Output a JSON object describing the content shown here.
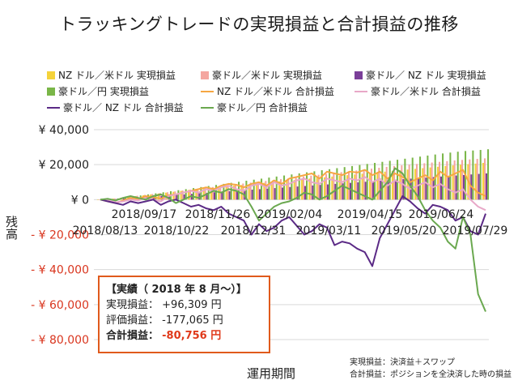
{
  "title": "トラッキングトレードの実現損益と合計損益の推移",
  "chart_data": {
    "type": "bar",
    "xlabel": "運用期間",
    "ylabel": "残高",
    "ylim": [
      -80000,
      40000
    ],
    "yticks": [
      {
        "value": 40000,
        "label": "¥ 40,000"
      },
      {
        "value": 20000,
        "label": "¥ 20,000"
      },
      {
        "value": 0,
        "label": "¥ 0"
      },
      {
        "value": -20000,
        "label": "- ¥ 20,000"
      },
      {
        "value": -40000,
        "label": "- ¥ 40,000"
      },
      {
        "value": -60000,
        "label": "- ¥ 60,000"
      },
      {
        "value": -80000,
        "label": "- ¥ 80,000"
      }
    ],
    "x_tick_labels_row1": [
      "2018/09/17",
      "2018/11/26",
      "2019/02/04",
      "2019/04/15",
      "2019/06/24"
    ],
    "x_tick_labels_row2": [
      "2018/08/13",
      "2018/10/22",
      "2018/12/31",
      "2019/03/11",
      "2019/05/20",
      "2019/07/29"
    ],
    "grid": "horizontal",
    "legend_position": "top",
    "series": [
      {
        "name": "NZ ドル／米ドル 実現損益",
        "kind": "bar",
        "color": "#f5d33a",
        "values": [
          0,
          200,
          600,
          1000,
          1500,
          2000,
          2500,
          3000,
          3500,
          4000,
          4500,
          5000,
          5500,
          6000,
          6400,
          6800,
          7200,
          7600,
          8000,
          8400,
          8800,
          9200,
          9600,
          10000,
          10400,
          10800,
          11200,
          11600,
          12000,
          12400,
          12800,
          13200,
          13600,
          14000,
          14400,
          14800,
          15200,
          15600,
          16000,
          16400,
          16800,
          17200,
          17600,
          18000,
          18400,
          18800,
          19200,
          19600,
          20000,
          20300,
          20600,
          21000
        ]
      },
      {
        "name": "豪ドル／米ドル 実現損益",
        "kind": "bar",
        "color": "#f4a6a0",
        "values": [
          0,
          300,
          700,
          1200,
          1700,
          2200,
          2700,
          3200,
          3700,
          4200,
          4700,
          5200,
          5700,
          6200,
          6700,
          7200,
          7700,
          8200,
          8700,
          9200,
          9700,
          10200,
          10700,
          11200,
          11700,
          12200,
          12700,
          13200,
          13700,
          14200,
          14700,
          15200,
          15700,
          16200,
          16700,
          17200,
          17700,
          18200,
          18700,
          19200,
          19600,
          20000,
          20400,
          20800,
          21200,
          21600,
          22000,
          22400,
          22700,
          23000,
          23300,
          23600
        ]
      },
      {
        "name": "豪ドル／ NZ ドル 実現損益",
        "kind": "bar",
        "color": "#7b3f99",
        "values": [
          0,
          100,
          300,
          600,
          900,
          1200,
          1500,
          1800,
          2100,
          2400,
          2700,
          3000,
          3300,
          3600,
          3900,
          4200,
          4500,
          4800,
          5100,
          5400,
          5700,
          6000,
          6300,
          6600,
          6900,
          7200,
          7500,
          7800,
          8100,
          8400,
          8700,
          9000,
          9300,
          9600,
          9900,
          10200,
          10500,
          10800,
          11100,
          11400,
          11700,
          12000,
          12300,
          12600,
          12900,
          13200,
          13500,
          13800,
          14100,
          14400,
          14700,
          15000
        ]
      },
      {
        "name": "豪ドル／円 実現損益",
        "kind": "bar",
        "color": "#7ab648",
        "values": [
          0,
          300,
          700,
          1200,
          1800,
          2400,
          3000,
          3600,
          4200,
          4800,
          5400,
          6000,
          6600,
          7200,
          7800,
          8400,
          9000,
          9600,
          10200,
          10800,
          11400,
          12000,
          12600,
          13200,
          13800,
          14400,
          15000,
          15600,
          16200,
          16800,
          17400,
          18000,
          18600,
          19200,
          19800,
          20400,
          21000,
          21600,
          22200,
          22800,
          23400,
          24000,
          24600,
          25200,
          25800,
          26400,
          26900,
          27400,
          27800,
          28100,
          28400,
          28800
        ]
      },
      {
        "name": "NZ ドル／米ドル 合計損益",
        "kind": "line",
        "color": "#f6a742",
        "values": [
          0,
          -1000,
          -2000,
          -500,
          1000,
          500,
          2000,
          1500,
          500,
          2500,
          3000,
          4000,
          5000,
          6000,
          7000,
          6000,
          8000,
          9000,
          8500,
          7000,
          9000,
          10000,
          8000,
          11000,
          9000,
          12000,
          13000,
          14000,
          15000,
          12000,
          16000,
          15000,
          14000,
          16000,
          15500,
          17000,
          14000,
          16000,
          12000,
          15000,
          13000,
          10000,
          12000,
          14000,
          11000,
          16000,
          13000,
          15000,
          17000,
          8000,
          4000,
          2000
        ]
      },
      {
        "name": "豪ドル／米ドル 合計損益",
        "kind": "line",
        "color": "#e8a8c8",
        "values": [
          0,
          -500,
          -1500,
          -1000,
          0,
          -500,
          1000,
          0,
          -1000,
          2000,
          3000,
          4000,
          5000,
          4000,
          6000,
          5000,
          7000,
          8000,
          6000,
          5000,
          8000,
          9000,
          7000,
          10000,
          8000,
          9000,
          11000,
          12000,
          10000,
          9000,
          12000,
          11000,
          10000,
          12000,
          11000,
          13000,
          10000,
          12000,
          8000,
          11000,
          9000,
          6000,
          8000,
          10000,
          7000,
          9000,
          6000,
          4000,
          6000,
          0,
          -4000,
          -6000
        ]
      },
      {
        "name": "豪ドル／ NZ ドル 合計損益",
        "kind": "line",
        "color": "#5b2a86",
        "values": [
          0,
          -1000,
          -2000,
          -3000,
          -1000,
          -2000,
          -1000,
          0,
          -3000,
          -1000,
          0,
          -2000,
          -4000,
          -3000,
          -5000,
          -6000,
          -4000,
          -8000,
          -10000,
          -12000,
          -20000,
          -14000,
          -18000,
          -16000,
          -12000,
          -10000,
          -15000,
          -20000,
          -18000,
          -14000,
          -16000,
          -26000,
          -24000,
          -25000,
          -28000,
          -30000,
          -38000,
          -22000,
          -14000,
          -6000,
          2000,
          -1000,
          -5000,
          -8000,
          -3000,
          -4000,
          -6000,
          -12000,
          -10000,
          -18000,
          -20000,
          -8000
        ]
      },
      {
        "name": "豪ドル／円 合計損益",
        "kind": "line",
        "color": "#6aa84f",
        "values": [
          0,
          500,
          -500,
          1000,
          2000,
          1000,
          0,
          2000,
          3000,
          1000,
          -2000,
          0,
          2000,
          1000,
          3000,
          5000,
          4000,
          6000,
          5000,
          3000,
          -4000,
          -12000,
          -8000,
          -4000,
          -2000,
          -1000,
          1000,
          4000,
          3000,
          0,
          2000,
          5000,
          8000,
          6000,
          4000,
          2000,
          0,
          5000,
          10000,
          18000,
          15000,
          8000,
          2000,
          -6000,
          -12000,
          -16000,
          -24000,
          -28000,
          -10000,
          -20000,
          -54000,
          -64000
        ]
      }
    ]
  },
  "summary": {
    "heading": "【実績（ 2018 年 8 月～）】",
    "realized_label": "実現損益：",
    "realized_value": "+96,309 円",
    "unrealized_label": "評価損益：",
    "unrealized_value": "-177,065 円",
    "total_label": "合計損益：",
    "total_value": "-80,756 円",
    "total_color": "#e0391a"
  },
  "notes": {
    "line1": "実現損益：決済益＋スワップ",
    "line2": "合計損益：ポジションを全決済した時の損益"
  }
}
